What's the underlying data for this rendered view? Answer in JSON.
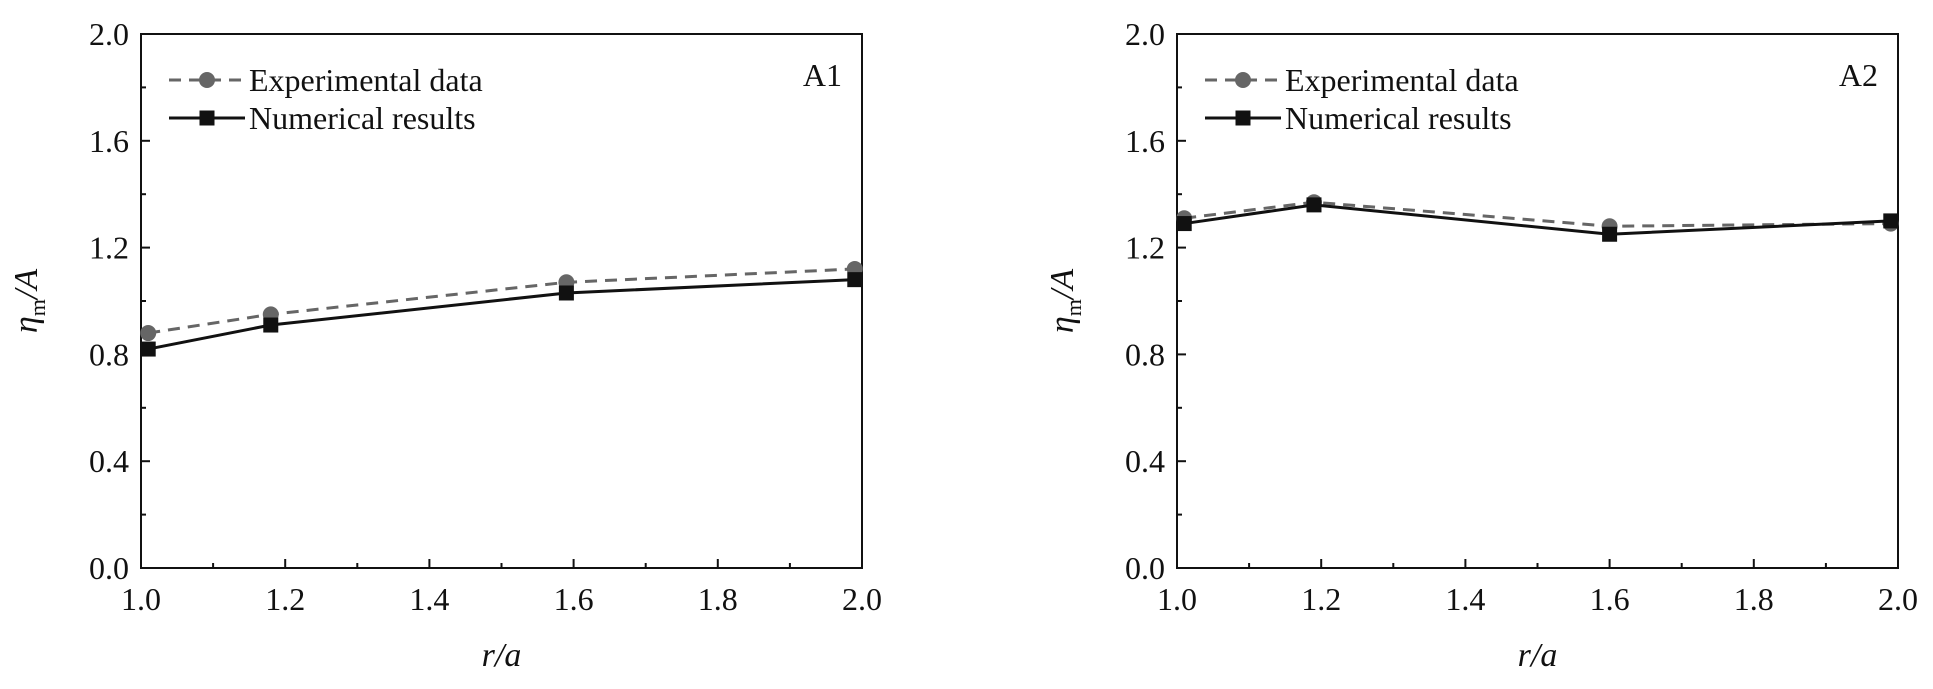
{
  "chart_data": [
    {
      "type": "line",
      "panel_label": "A1",
      "xlabel": "r/a",
      "ylabel": "η_m/A",
      "ylabel_main": "η",
      "ylabel_sub": "m",
      "ylabel_tail": "/A",
      "xlim": [
        1.0,
        2.0
      ],
      "ylim": [
        0.0,
        2.0
      ],
      "xticks": [
        "1.0",
        "1.2",
        "1.4",
        "1.6",
        "1.8",
        "2.0"
      ],
      "yticks": [
        "0.0",
        "0.4",
        "0.8",
        "1.2",
        "1.6",
        "2.0"
      ],
      "legend_position": "top-left",
      "grid": false,
      "series": [
        {
          "name": "Experimental data",
          "style": "dashed",
          "marker": "circle",
          "color": "#666666",
          "x": [
            1.01,
            1.18,
            1.59,
            1.99
          ],
          "y": [
            0.88,
            0.95,
            1.07,
            1.12
          ]
        },
        {
          "name": "Numerical results",
          "style": "solid",
          "marker": "square",
          "color": "#111111",
          "x": [
            1.01,
            1.18,
            1.59,
            1.99
          ],
          "y": [
            0.82,
            0.91,
            1.03,
            1.08
          ]
        }
      ]
    },
    {
      "type": "line",
      "panel_label": "A2",
      "xlabel": "r/a",
      "ylabel": "η_m/A",
      "ylabel_main": "η",
      "ylabel_sub": "m",
      "ylabel_tail": "/A",
      "xlim": [
        1.0,
        2.0
      ],
      "ylim": [
        0.0,
        2.0
      ],
      "xticks": [
        "1.0",
        "1.2",
        "1.4",
        "1.6",
        "1.8",
        "2.0"
      ],
      "yticks": [
        "0.0",
        "0.4",
        "0.8",
        "1.2",
        "1.6",
        "2.0"
      ],
      "legend_position": "top-left",
      "grid": false,
      "series": [
        {
          "name": "Experimental data",
          "style": "dashed",
          "marker": "circle",
          "color": "#666666",
          "x": [
            1.01,
            1.19,
            1.6,
            1.99
          ],
          "y": [
            1.31,
            1.37,
            1.28,
            1.29
          ]
        },
        {
          "name": "Numerical results",
          "style": "solid",
          "marker": "square",
          "color": "#111111",
          "x": [
            1.01,
            1.19,
            1.6,
            1.99
          ],
          "y": [
            1.29,
            1.36,
            1.25,
            1.3
          ]
        }
      ]
    }
  ]
}
